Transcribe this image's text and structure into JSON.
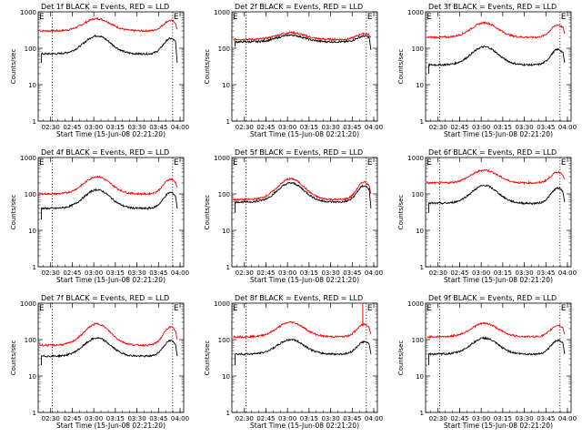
{
  "chart_data": [
    {
      "type": "line",
      "title": "Det 1f BLACK = Events, RED = LLD",
      "xlabel": "Start Time (15-Jun-08 02:21:20)",
      "ylabel": "Counts/sec",
      "yscale": "log",
      "ylim": [
        1,
        1000
      ],
      "x_ticks": [
        "02:30",
        "02:45",
        "03:00",
        "03:15",
        "03:30",
        "03:45",
        "04:00"
      ],
      "y_ticks": [
        "1",
        "10",
        "100",
        "1000"
      ],
      "markers": [
        "E",
        "E"
      ],
      "series": [
        {
          "color": "#ff0000",
          "min": 300,
          "max": 650,
          "start": 330,
          "end": 330
        },
        {
          "color": "#000000",
          "min": 70,
          "max": 220,
          "start": 40,
          "end": 40
        }
      ]
    },
    {
      "type": "line",
      "title": "Det 2f BLACK = Events, RED = LLD",
      "xlabel": "Start Time (15-Jun-08 02:21:20)",
      "ylabel": "Counts/sec",
      "yscale": "log",
      "ylim": [
        1,
        1000
      ],
      "x_ticks": [
        "02:30",
        "02:45",
        "03:00",
        "03:15",
        "03:30",
        "03:45",
        "04:00"
      ],
      "y_ticks": [
        "1",
        "10",
        "100",
        "1000"
      ],
      "markers": [
        "E",
        "E"
      ],
      "series": [
        {
          "color": "#ff0000",
          "min": 175,
          "max": 270,
          "start": 180,
          "end": 200
        },
        {
          "color": "#000000",
          "min": 150,
          "max": 230,
          "start": 110,
          "end": 90
        }
      ]
    },
    {
      "type": "line",
      "title": "Det 3f BLACK = Events, RED = LLD",
      "xlabel": "Start Time (15-Jun-08 02:21:20)",
      "ylabel": "Counts/sec",
      "yscale": "log",
      "ylim": [
        1,
        1000
      ],
      "x_ticks": [
        "02:30",
        "02:45",
        "03:00",
        "03:15",
        "03:30",
        "03:45",
        "04:00"
      ],
      "y_ticks": [
        "1",
        "10",
        "100",
        "1000"
      ],
      "markers": [
        "E",
        "E"
      ],
      "series": [
        {
          "color": "#ff0000",
          "min": 200,
          "max": 500,
          "start": 200,
          "end": 250
        },
        {
          "color": "#000000",
          "min": 35,
          "max": 110,
          "start": 20,
          "end": 40
        }
      ]
    },
    {
      "type": "line",
      "title": "Det 4f BLACK = Events, RED = LLD",
      "xlabel": "Start Time (15-Jun-08 02:21:20)",
      "ylabel": "Counts/sec",
      "yscale": "log",
      "ylim": [
        1,
        1000
      ],
      "x_ticks": [
        "02:30",
        "02:45",
        "03:00",
        "03:15",
        "03:30",
        "03:45",
        "04:00"
      ],
      "y_ticks": [
        "1",
        "10",
        "100",
        "1000"
      ],
      "markers": [
        "E",
        "E"
      ],
      "series": [
        {
          "color": "#ff0000",
          "min": 100,
          "max": 300,
          "start": 110,
          "end": 150
        },
        {
          "color": "#000000",
          "min": 40,
          "max": 130,
          "start": 20,
          "end": 40
        }
      ]
    },
    {
      "type": "line",
      "title": "Det 5f BLACK = Events, RED = LLD",
      "xlabel": "Start Time (15-Jun-08 02:21:20)",
      "ylabel": "Counts/sec",
      "yscale": "log",
      "ylim": [
        1,
        1000
      ],
      "x_ticks": [
        "02:30",
        "02:45",
        "03:00",
        "03:15",
        "03:30",
        "03:45",
        "04:00"
      ],
      "y_ticks": [
        "1",
        "10",
        "100",
        "1000"
      ],
      "markers": [
        "E",
        "E"
      ],
      "series": [
        {
          "color": "#ff0000",
          "min": 70,
          "max": 260,
          "start": 75,
          "end": 100
        },
        {
          "color": "#000000",
          "min": 60,
          "max": 200,
          "start": 30,
          "end": 40
        }
      ]
    },
    {
      "type": "line",
      "title": "Det 6f BLACK = Events, RED = LLD",
      "xlabel": "Start Time (15-Jun-08 02:21:20)",
      "ylabel": "Counts/sec",
      "yscale": "log",
      "ylim": [
        1,
        1000
      ],
      "x_ticks": [
        "02:30",
        "02:45",
        "03:00",
        "03:15",
        "03:30",
        "03:45",
        "04:00"
      ],
      "y_ticks": [
        "1",
        "10",
        "100",
        "1000"
      ],
      "markers": [
        "E",
        "E"
      ],
      "series": [
        {
          "color": "#ff0000",
          "min": 200,
          "max": 450,
          "start": 220,
          "end": 250
        },
        {
          "color": "#000000",
          "min": 55,
          "max": 170,
          "start": 30,
          "end": 60
        }
      ]
    },
    {
      "type": "line",
      "title": "Det 7f BLACK = Events, RED = LLD",
      "xlabel": "Start Time (15-Jun-08 02:21:20)",
      "ylabel": "Counts/sec",
      "yscale": "log",
      "ylim": [
        1,
        1000
      ],
      "x_ticks": [
        "02:30",
        "02:45",
        "03:00",
        "03:15",
        "03:30",
        "03:45",
        "04:00"
      ],
      "y_ticks": [
        "1",
        "10",
        "100",
        "1000"
      ],
      "markers": [
        "E",
        "E"
      ],
      "series": [
        {
          "color": "#ff0000",
          "min": 70,
          "max": 270,
          "start": 80,
          "end": 100
        },
        {
          "color": "#000000",
          "min": 35,
          "max": 110,
          "start": 20,
          "end": 35
        }
      ]
    },
    {
      "type": "line",
      "title": "Det 8f BLACK = Events, RED = LLD",
      "xlabel": "Start Time (15-Jun-08 02:21:20)",
      "ylabel": "Counts/sec",
      "yscale": "log",
      "ylim": [
        1,
        1000
      ],
      "x_ticks": [
        "02:30",
        "02:45",
        "03:00",
        "03:15",
        "03:30",
        "03:45",
        "04:00"
      ],
      "y_ticks": [
        "1",
        "10",
        "100",
        "1000"
      ],
      "markers": [
        "E",
        "E"
      ],
      "series": [
        {
          "color": "#ff0000",
          "min": 120,
          "max": 300,
          "start": 120,
          "end": 140,
          "spike": 1000
        },
        {
          "color": "#000000",
          "min": 40,
          "max": 100,
          "start": 20,
          "end": 40
        }
      ]
    },
    {
      "type": "line",
      "title": "Det 9f BLACK = Events, RED = LLD",
      "xlabel": "Start Time (15-Jun-08 02:21:20)",
      "ylabel": "Counts/sec",
      "yscale": "log",
      "ylim": [
        1,
        1000
      ],
      "x_ticks": [
        "02:30",
        "02:45",
        "03:00",
        "03:15",
        "03:30",
        "03:45",
        "04:00"
      ],
      "y_ticks": [
        "1",
        "10",
        "100",
        "1000"
      ],
      "markers": [
        "E",
        "E"
      ],
      "series": [
        {
          "color": "#ff0000",
          "min": 120,
          "max": 280,
          "start": 120,
          "end": 140
        },
        {
          "color": "#000000",
          "min": 40,
          "max": 110,
          "start": 20,
          "end": 40
        }
      ]
    }
  ]
}
